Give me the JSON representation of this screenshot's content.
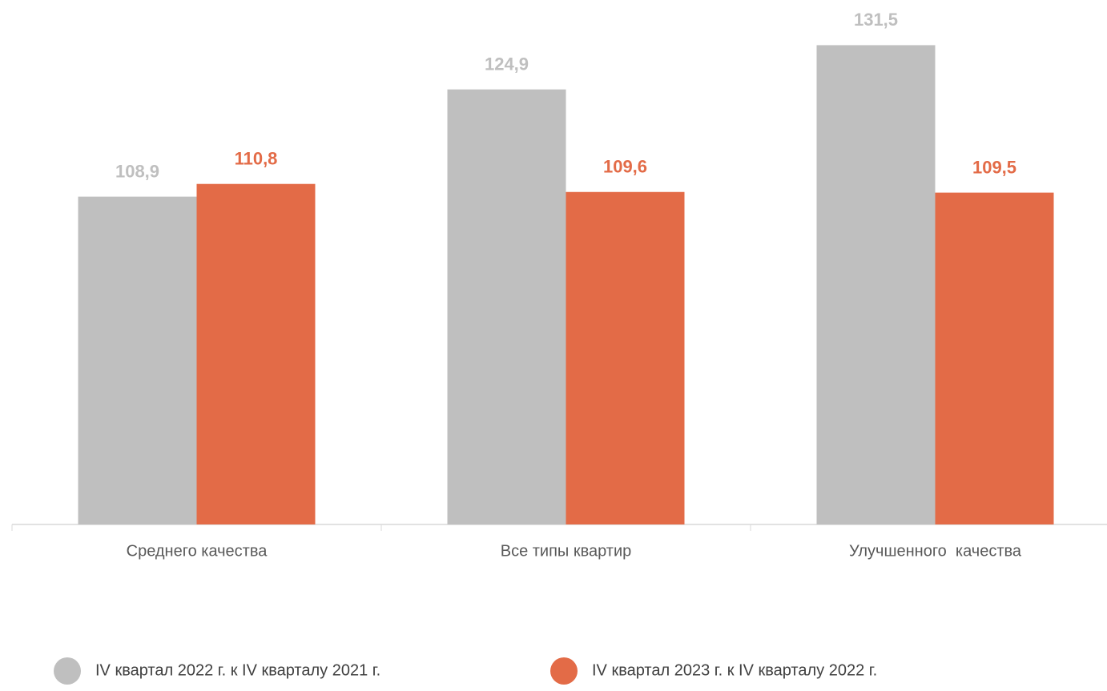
{
  "chart_data": {
    "type": "bar",
    "categories": [
      "Среднего качества",
      "Все типы квартир",
      "Улучшенного  качества"
    ],
    "series": [
      {
        "name": "IV квартал 2022 г. к IV кварталу 2021 г.",
        "color": "#bfbfbf",
        "values": [
          108.9,
          124.9,
          131.5
        ],
        "value_labels": [
          "108,9",
          "124,9",
          "131,5"
        ]
      },
      {
        "name": "IV квартал 2023 г. к IV кварталу 2022 г.",
        "color": "#e36b47",
        "values": [
          110.8,
          109.6,
          109.5
        ],
        "value_labels": [
          "110,8",
          "109,6",
          "109,5"
        ]
      }
    ],
    "ylim": [
      60,
      138
    ],
    "legend": "bottom"
  }
}
